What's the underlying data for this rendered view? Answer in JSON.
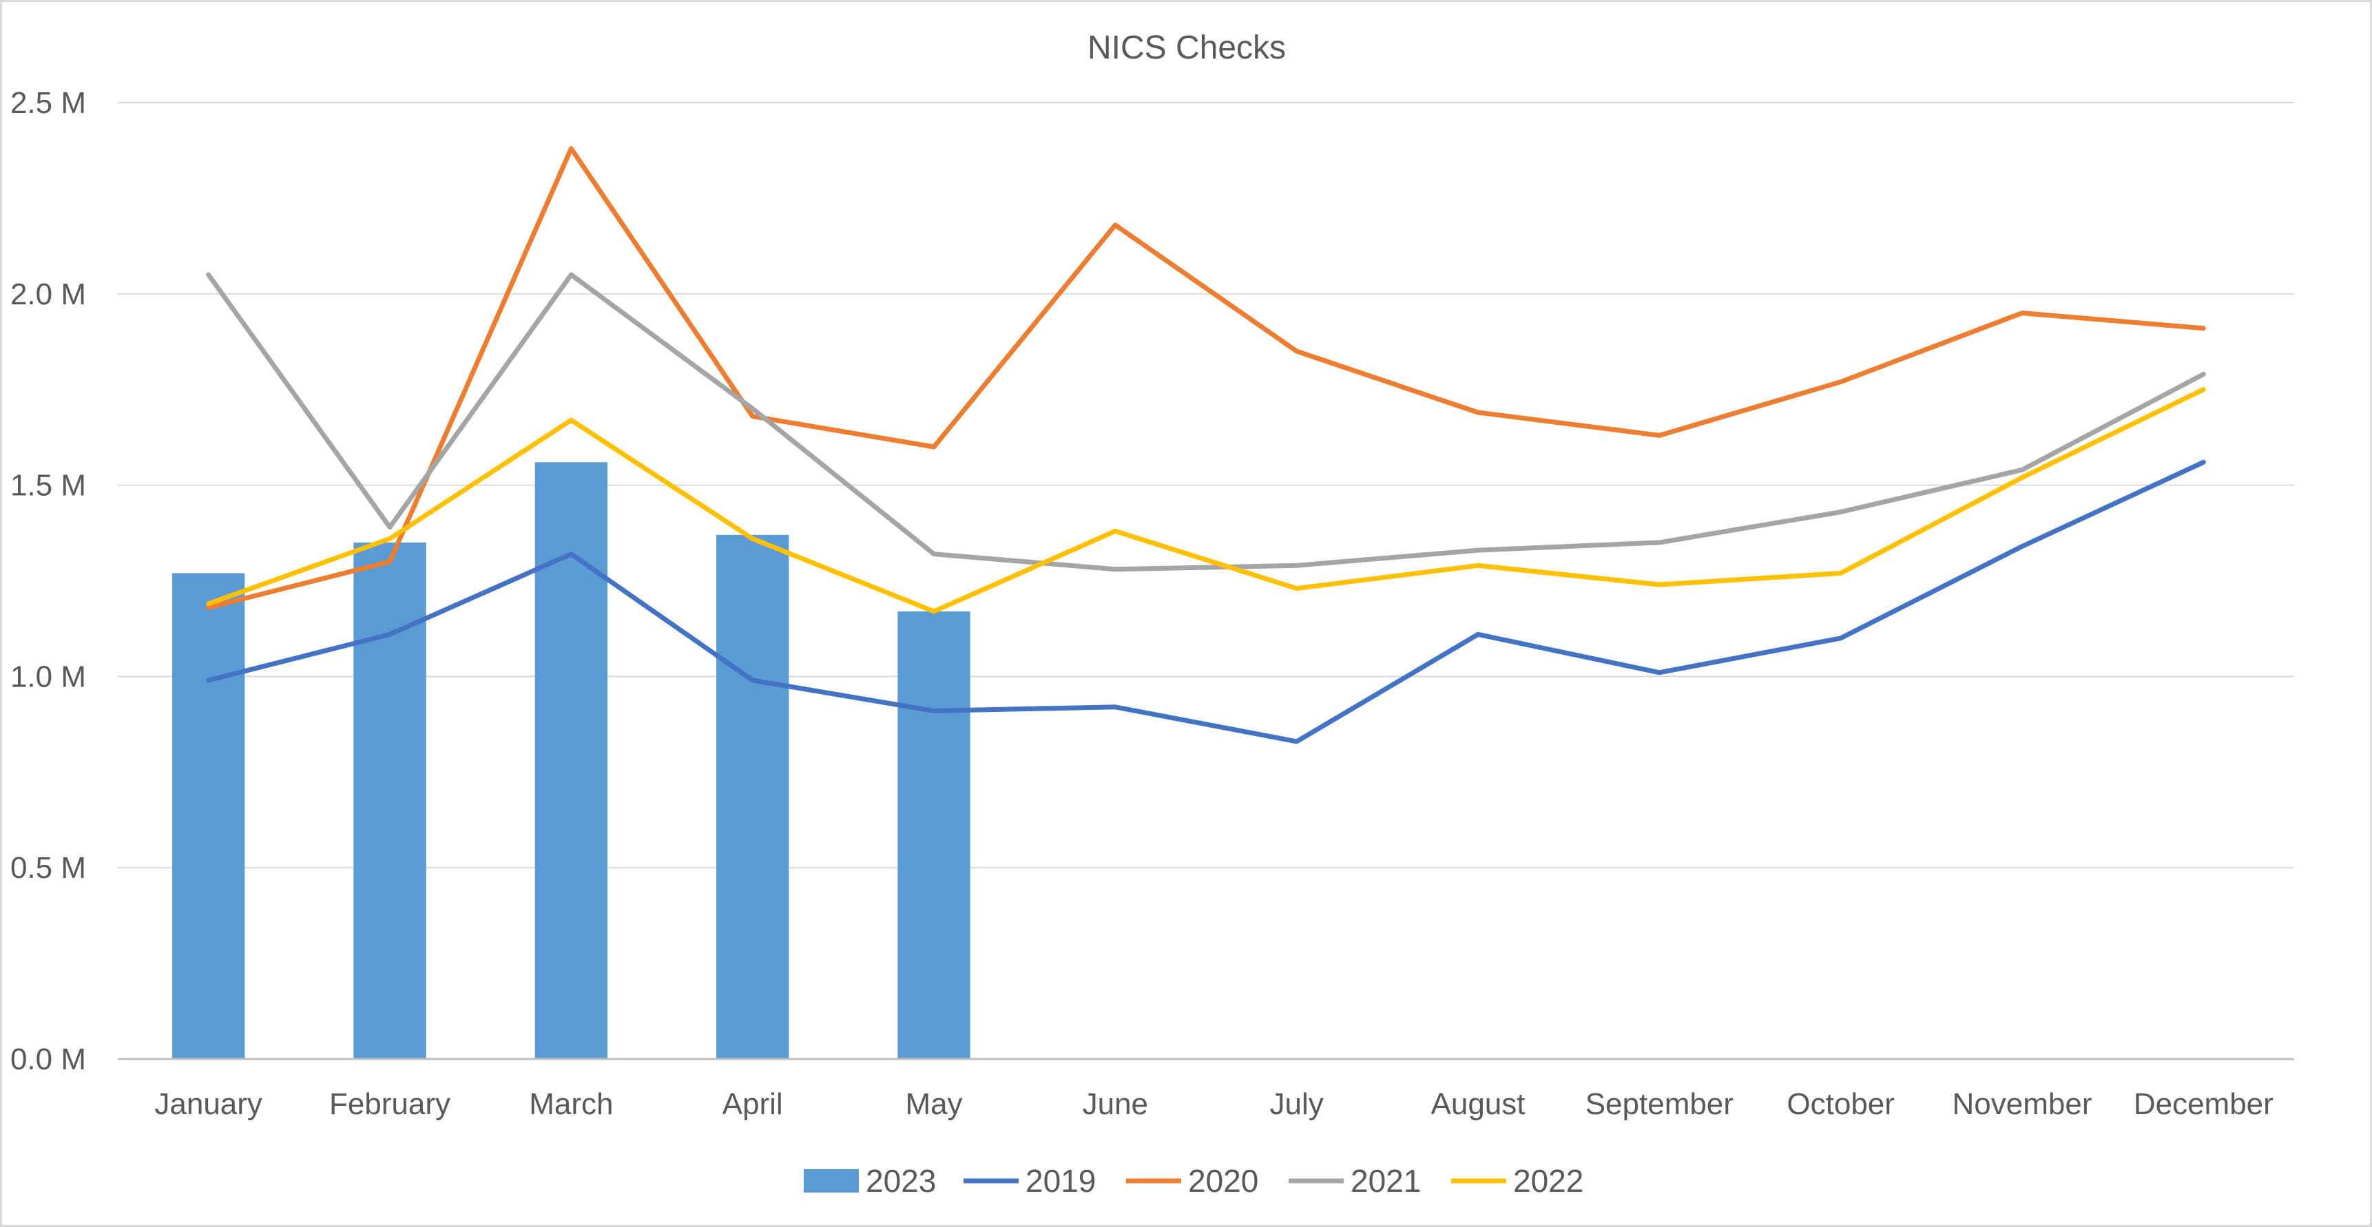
{
  "chart_data": {
    "type": "bar",
    "title": "NICS Checks",
    "categories": [
      "January",
      "February",
      "March",
      "April",
      "May",
      "June",
      "July",
      "August",
      "September",
      "October",
      "November",
      "December"
    ],
    "y_ticks": [
      "0.0 M",
      "0.5 M",
      "1.0 M",
      "1.5 M",
      "2.0 M",
      "2.5 M"
    ],
    "ylim": [
      0,
      2.5
    ],
    "y_unit": "M",
    "grid": true,
    "legend_position": "bottom",
    "bar_series": {
      "name": "2023",
      "color": "#5b9bd5",
      "values": [
        1.27,
        1.35,
        1.56,
        1.37,
        1.17
      ]
    },
    "line_series": [
      {
        "name": "2019",
        "color": "#4472c4",
        "values": [
          0.99,
          1.11,
          1.32,
          0.99,
          0.91,
          0.92,
          0.83,
          1.11,
          1.01,
          1.1,
          1.34,
          1.56
        ]
      },
      {
        "name": "2020",
        "color": "#ed7d31",
        "values": [
          1.18,
          1.3,
          2.38,
          1.68,
          1.6,
          2.18,
          1.85,
          1.69,
          1.63,
          1.77,
          1.95,
          1.91
        ]
      },
      {
        "name": "2021",
        "color": "#a5a5a5",
        "values": [
          2.05,
          1.39,
          2.05,
          1.7,
          1.32,
          1.28,
          1.29,
          1.33,
          1.35,
          1.43,
          1.54,
          1.79
        ]
      },
      {
        "name": "2022",
        "color": "#ffc000",
        "values": [
          1.19,
          1.36,
          1.67,
          1.36,
          1.17,
          1.38,
          1.23,
          1.29,
          1.24,
          1.27,
          1.52,
          1.75
        ]
      }
    ]
  }
}
